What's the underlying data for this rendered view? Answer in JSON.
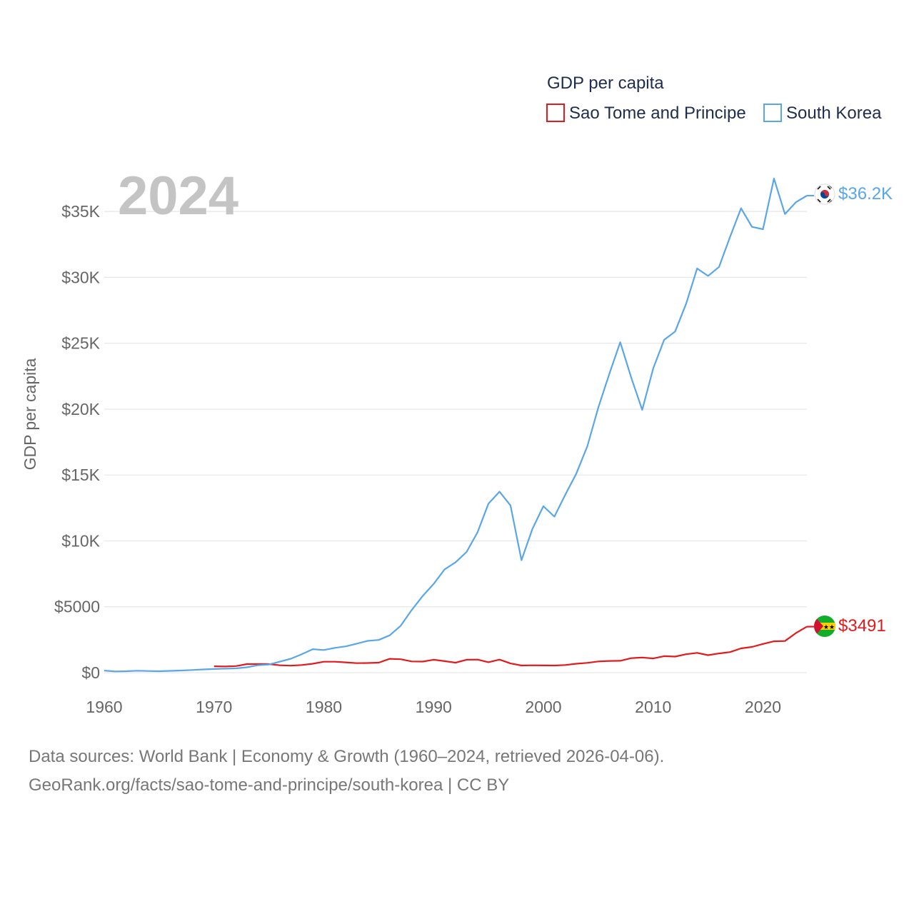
{
  "chart_data": {
    "type": "line",
    "title": "GDP per capita",
    "year_label": "2024",
    "ylabel": "GDP per capita",
    "xlabel": "",
    "xlim": [
      1960,
      2024
    ],
    "ylim": [
      0,
      37500
    ],
    "x_ticks": [
      1960,
      1970,
      1980,
      1990,
      2000,
      2010,
      2020
    ],
    "x_tick_labels": [
      "1960",
      "1970",
      "1980",
      "1990",
      "2000",
      "2010",
      "2020"
    ],
    "y_ticks": [
      0,
      5000,
      10000,
      15000,
      20000,
      25000,
      30000,
      35000
    ],
    "y_tick_labels": [
      "$0",
      "$5000",
      "$10K",
      "$15K",
      "$20K",
      "$25K",
      "$30K",
      "$35K"
    ],
    "grid": true,
    "legend_title": "GDP per capita",
    "series": [
      {
        "name": "Sao Tome and Principe",
        "color": "#e31a1c",
        "end_label": "$3491",
        "flag_icon": "sao-tome-flag-icon",
        "x": [
          1970,
          1971,
          1972,
          1973,
          1974,
          1975,
          1976,
          1977,
          1978,
          1979,
          1980,
          1981,
          1982,
          1983,
          1984,
          1985,
          1986,
          1987,
          1988,
          1989,
          1990,
          1991,
          1992,
          1993,
          1994,
          1995,
          1996,
          1997,
          1998,
          1999,
          2000,
          2001,
          2002,
          2003,
          2004,
          2005,
          2006,
          2007,
          2008,
          2009,
          2010,
          2011,
          2012,
          2013,
          2014,
          2015,
          2016,
          2017,
          2018,
          2019,
          2020,
          2021,
          2022,
          2023,
          2024
        ],
        "values": [
          480,
          470,
          500,
          650,
          650,
          650,
          560,
          530,
          580,
          680,
          830,
          830,
          780,
          720,
          730,
          760,
          1050,
          1020,
          850,
          840,
          980,
          870,
          760,
          980,
          990,
          790,
          990,
          700,
          540,
          560,
          550,
          540,
          580,
          680,
          740,
          850,
          890,
          900,
          1100,
          1150,
          1080,
          1250,
          1220,
          1400,
          1500,
          1330,
          1460,
          1560,
          1840,
          1950,
          2180,
          2380,
          2400,
          3000,
          3491
        ]
      },
      {
        "name": "South Korea",
        "color": "#5aa6e6",
        "end_label": "$36.2K",
        "flag_icon": "south-korea-flag-icon",
        "x": [
          1960,
          1961,
          1962,
          1963,
          1964,
          1965,
          1966,
          1967,
          1968,
          1969,
          1970,
          1971,
          1972,
          1973,
          1974,
          1975,
          1976,
          1977,
          1978,
          1979,
          1980,
          1981,
          1982,
          1983,
          1984,
          1985,
          1986,
          1987,
          1988,
          1989,
          1990,
          1991,
          1992,
          1993,
          1994,
          1995,
          1996,
          1997,
          1998,
          1999,
          2000,
          2001,
          2002,
          2003,
          2004,
          2005,
          2006,
          2007,
          2008,
          2009,
          2010,
          2011,
          2012,
          2013,
          2014,
          2015,
          2016,
          2017,
          2018,
          2019,
          2020,
          2021,
          2022,
          2023,
          2024
        ],
        "values": [
          158,
          94,
          106,
          146,
          124,
          108,
          133,
          161,
          198,
          243,
          279,
          301,
          324,
          406,
          563,
          617,
          834,
          1056,
          1406,
          1783,
          1716,
          1883,
          1992,
          2199,
          2413,
          2482,
          2835,
          3555,
          4749,
          5817,
          6733,
          7837,
          8376,
          9159,
          10653,
          12833,
          13730,
          12692,
          8534,
          10910,
          12630,
          11840,
          13520,
          15109,
          17180,
          20120,
          22670,
          25080,
          22392,
          19940,
          23090,
          25260,
          25890,
          28000,
          30670,
          30110,
          30790,
          33070,
          35240,
          33830,
          33650,
          37500,
          34800,
          35700,
          36200
        ]
      }
    ]
  },
  "footer": {
    "line1": "Data sources: World Bank | Economy & Growth (1960–2024, retrieved 2026-04-06).",
    "line2": "GeoRank.org/facts/sao-tome-and-principe/south-korea | CC BY"
  }
}
